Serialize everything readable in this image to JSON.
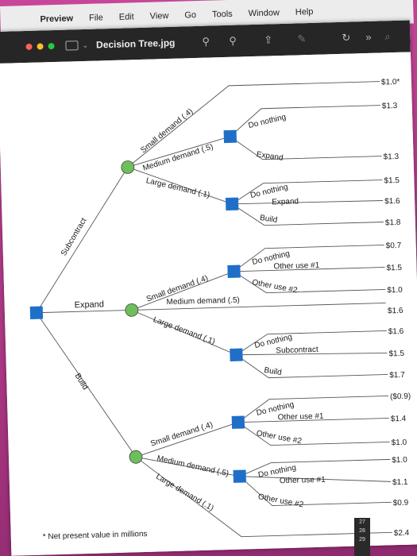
{
  "menubar": {
    "apple_icon": "apple-icon",
    "items": [
      "Preview",
      "File",
      "Edit",
      "View",
      "Go",
      "Tools",
      "Window",
      "Help"
    ]
  },
  "window": {
    "title": "Decision Tree.jpg",
    "traffic_lights": [
      "#ff5f57",
      "#febc2e",
      "#28c840"
    ]
  },
  "tree": {
    "payoffs": [
      "$1.0*",
      "$1.3",
      "$1.3",
      "$1.5",
      "$1.6",
      "$1.8",
      "$0.7",
      "$1.5",
      "$1.0",
      "$1.6",
      "$1.6",
      "$1.5",
      "$1.7",
      "($0.9)",
      "$1.4",
      "$1.0",
      "$1.0",
      "$1.1",
      "$0.9",
      "$2.4"
    ],
    "root_branches": {
      "subcontract": "Subcontract",
      "expand": "Expand",
      "build": "Build"
    },
    "chance_sub": {
      "small": "Small demand (.4)",
      "medium": "Medium demand (.5)",
      "large": "Large demand (.1)"
    },
    "chance_exp": {
      "small": "Small demand (.4)",
      "medium": "Medium demand (.5)",
      "large": "Large demand (.1)"
    },
    "chance_build": {
      "small": "Small demand (.4)",
      "medium": "Medium demand (.5)",
      "large": "Large demand (.1)"
    },
    "dec_sub_med": {
      "a": "Do nothing",
      "b": "Expand"
    },
    "dec_sub_large": {
      "a": "Do nothing",
      "b": "Expand",
      "c": "Build"
    },
    "dec_exp_small": {
      "a": "Do nothing",
      "b": "Other use #1",
      "c": "Other use #2"
    },
    "dec_exp_large": {
      "a": "Do nothing",
      "b": "Subcontract",
      "c": "Build"
    },
    "dec_build_small": {
      "a": "Do nothing",
      "b": "Other use #1",
      "c": "Other use #2"
    },
    "dec_build_med": {
      "a": "Do nothing",
      "b": "Other use #1",
      "c": "Other use #2"
    },
    "footnote": "* Net present value in millions",
    "colors": {
      "decision": "#1f6fc9",
      "chance": "#6cbf5a"
    }
  },
  "dock": {
    "dates": [
      "27",
      "28",
      "29"
    ]
  }
}
